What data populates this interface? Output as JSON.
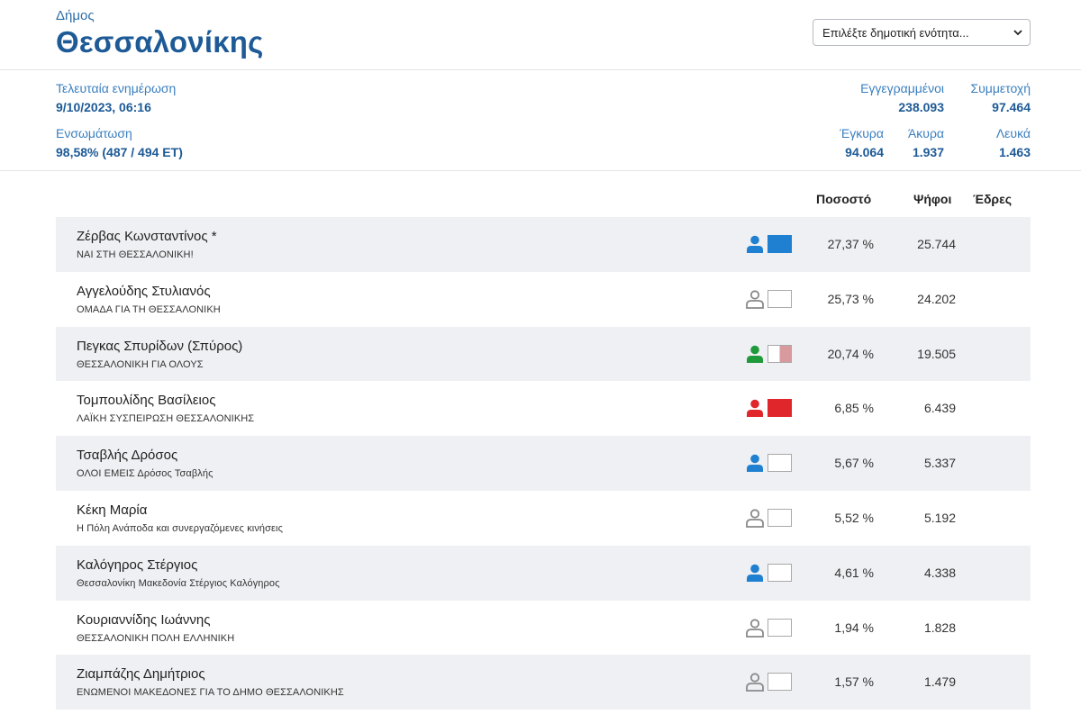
{
  "header": {
    "dimos_label": "Δήμος",
    "city": "Θεσσαλονίκης",
    "select_placeholder": "Επιλέξτε δημοτική ενότητα..."
  },
  "stats": {
    "last_update_label": "Τελευταία ενημέρωση",
    "last_update_value": "9/10/2023, 06:16",
    "integration_label": "Ενσωμάτωση",
    "integration_value": "98,58% (487 / 494 ΕΤ)",
    "registered_label": "Εγγεγραμμένοι",
    "registered_value": "238.093",
    "turnout_label": "Συμμετοχή",
    "turnout_value": "97.464",
    "valid_label": "Έγκυρα",
    "valid_value": "94.064",
    "invalid_label": "Άκυρα",
    "invalid_value": "1.937",
    "blank_label": "Λευκά",
    "blank_value": "1.463"
  },
  "table": {
    "col_percent": "Ποσοστό",
    "col_votes": "Ψήφοι",
    "col_seats": "Έδρες",
    "rows": [
      {
        "name": "Ζέρβας Κωνσταντίνος *",
        "party": "ΝΑΙ ΣΤΗ ΘΕΣΣΑΛΟΝΙΚΗ!",
        "percent": "27,37 %",
        "votes": "25.744",
        "person_color": "#1f7fd0",
        "box": "full-blue"
      },
      {
        "name": "Αγγελούδης Στυλιανός",
        "party": "ΟΜΑΔΑ ΓΙΑ ΤΗ ΘΕΣΣΑΛΟΝΙΚΗ",
        "percent": "25,73 %",
        "votes": "24.202",
        "person_color": "outline",
        "box": "empty"
      },
      {
        "name": "Πεγκας Σπυρίδων (Σπύρος)",
        "party": "ΘΕΣΣΑΛΟΝΙΚΗ ΓΙΑ ΟΛΟΥΣ",
        "percent": "20,74 %",
        "votes": "19.505",
        "person_color": "#1f9a3a",
        "box": "half-pink"
      },
      {
        "name": "Τομπουλίδης Βασίλειος",
        "party": "ΛΑΪΚΗ ΣΥΣΠΕΙΡΩΣΗ ΘΕΣΣΑΛΟΝΙΚΗΣ",
        "percent": "6,85 %",
        "votes": "6.439",
        "person_color": "#e0262a",
        "box": "full-red"
      },
      {
        "name": "Τσαβλής Δρόσος",
        "party": "ΟΛΟΙ ΕΜΕΙΣ Δρόσος Τσαβλής",
        "percent": "5,67 %",
        "votes": "5.337",
        "person_color": "#1f7fd0",
        "box": "empty"
      },
      {
        "name": "Κέκη Μαρία",
        "party": "Η Πόλη Ανάποδα και συνεργαζόμενες κινήσεις",
        "percent": "5,52 %",
        "votes": "5.192",
        "person_color": "outline",
        "box": "empty"
      },
      {
        "name": "Καλόγηρος Στέργιος",
        "party": "Θεσσαλονίκη Μακεδονία Στέργιος Καλόγηρος",
        "percent": "4,61 %",
        "votes": "4.338",
        "person_color": "#1f7fd0",
        "box": "empty"
      },
      {
        "name": "Κουριαννίδης Ιωάννης",
        "party": "ΘΕΣΣΑΛΟΝΙΚΗ ΠΟΛΗ ΕΛΛΗΝΙΚΗ",
        "percent": "1,94 %",
        "votes": "1.828",
        "person_color": "outline",
        "box": "empty"
      },
      {
        "name": "Ζιαμπάζης Δημήτριος",
        "party": "ΕΝΩΜΕΝΟΙ ΜΑΚΕΔΟΝΕΣ ΓΙΑ ΤΟ ΔΗΜΟ ΘΕΣΣΑΛΟΝΙΚΗΣ",
        "percent": "1,57 %",
        "votes": "1.479",
        "person_color": "outline",
        "box": "empty"
      }
    ]
  },
  "colors": {
    "brand": "#1d5a96",
    "label": "#3a7fbf",
    "row_alt": "#eef0f3",
    "box_blue": "#1f7fd0",
    "box_red": "#e0262a",
    "box_pink": "#d99a9e"
  },
  "icons": {
    "person": "person-icon",
    "chevron": "chevron-down-icon"
  }
}
